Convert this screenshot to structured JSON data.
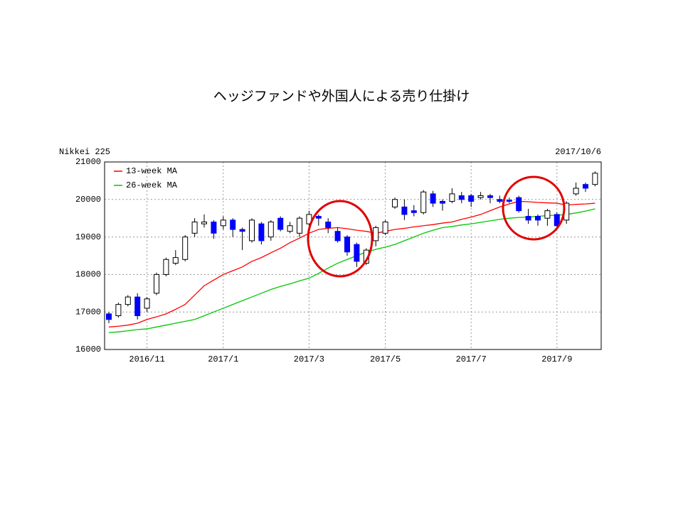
{
  "chart_data": {
    "type": "candlestick",
    "title": "ヘッジファンドや外国人による売り仕掛け",
    "corner_left": "Nikkei 225",
    "corner_right": "2017/10/6",
    "categories": [
      null,
      null,
      null,
      null,
      "2016/11",
      null,
      null,
      null,
      null,
      null,
      null,
      null,
      "2017/1",
      null,
      null,
      null,
      null,
      null,
      null,
      null,
      null,
      "2017/3",
      null,
      null,
      null,
      null,
      null,
      null,
      null,
      "2017/5",
      null,
      null,
      null,
      null,
      null,
      null,
      null,
      null,
      "2017/7",
      null,
      null,
      null,
      null,
      null,
      null,
      null,
      null,
      "2017/9",
      null,
      null,
      null,
      null
    ],
    "open": [
      16950,
      16900,
      17200,
      17400,
      17100,
      17500,
      18000,
      18300,
      18400,
      19100,
      19350,
      19400,
      19300,
      19450,
      19200,
      18900,
      19350,
      19000,
      19500,
      19150,
      19100,
      19350,
      19550,
      19400,
      19150,
      19000,
      18800,
      18300,
      18900,
      19100,
      19800,
      19800,
      19700,
      19650,
      20150,
      19950,
      19950,
      20100,
      20100,
      20050,
      20100,
      20000,
      19980,
      20050,
      19550,
      19550,
      19500,
      19600,
      19450,
      20150,
      20400,
      20400
    ],
    "high": [
      17000,
      17250,
      17450,
      17500,
      17400,
      18050,
      18450,
      18650,
      19050,
      19500,
      19600,
      19450,
      19550,
      19500,
      19250,
      19500,
      19400,
      19450,
      19550,
      19400,
      19550,
      19700,
      19600,
      19500,
      19250,
      19050,
      18850,
      18700,
      19300,
      19450,
      20050,
      20000,
      19850,
      20250,
      20230,
      20000,
      20300,
      20200,
      20150,
      20200,
      20150,
      20100,
      20050,
      20100,
      19750,
      19600,
      19750,
      19650,
      19950,
      20450,
      20450,
      20750
    ],
    "low": [
      16700,
      16850,
      17150,
      16800,
      17000,
      17450,
      17950,
      18250,
      18350,
      19000,
      19250,
      18950,
      19200,
      19000,
      18650,
      18850,
      18800,
      18900,
      19150,
      19100,
      19000,
      19300,
      19300,
      19100,
      18850,
      18500,
      18200,
      18250,
      18750,
      19050,
      19750,
      19450,
      19550,
      19600,
      19800,
      19700,
      19900,
      19900,
      19800,
      20000,
      19900,
      19900,
      19900,
      19650,
      19350,
      19300,
      19300,
      19200,
      19350,
      20100,
      20200,
      20350
    ],
    "close": [
      16800,
      17200,
      17400,
      16900,
      17350,
      18000,
      18400,
      18450,
      19000,
      19400,
      19400,
      19100,
      19450,
      19200,
      19150,
      19450,
      18900,
      19400,
      19200,
      19300,
      19500,
      19600,
      19500,
      19250,
      18900,
      18600,
      18350,
      18650,
      19250,
      19400,
      20000,
      19600,
      19650,
      20200,
      19900,
      19900,
      20150,
      20000,
      19950,
      20100,
      20050,
      19950,
      19950,
      19700,
      19450,
      19450,
      19700,
      19300,
      19900,
      20300,
      20300,
      20700
    ],
    "up_color": "#ffffff",
    "down_color": "#0000ff",
    "series": [
      {
        "name": "13-week MA",
        "color": "#ff0000",
        "values": [
          16600,
          16620,
          16650,
          16700,
          16800,
          16870,
          16950,
          17070,
          17200,
          17450,
          17700,
          17850,
          18000,
          18100,
          18200,
          18350,
          18450,
          18580,
          18700,
          18850,
          18970,
          19100,
          19200,
          19230,
          19250,
          19220,
          19180,
          19150,
          19100,
          19150,
          19200,
          19230,
          19270,
          19300,
          19330,
          19370,
          19400,
          19470,
          19530,
          19600,
          19700,
          19800,
          19880,
          19950,
          19940,
          19920,
          19910,
          19900,
          19850,
          19870,
          19880,
          19900
        ]
      },
      {
        "name": "26-week MA",
        "color": "#00c800",
        "values": [
          16450,
          16470,
          16500,
          16530,
          16550,
          16600,
          16650,
          16700,
          16750,
          16800,
          16900,
          17000,
          17100,
          17200,
          17300,
          17400,
          17500,
          17600,
          17680,
          17750,
          17830,
          17900,
          18030,
          18170,
          18300,
          18400,
          18500,
          18600,
          18670,
          18730,
          18800,
          18900,
          19000,
          19100,
          19180,
          19250,
          19280,
          19320,
          19350,
          19390,
          19430,
          19470,
          19500,
          19520,
          19530,
          19550,
          19570,
          19580,
          19600,
          19640,
          19690,
          19750
        ]
      }
    ],
    "ylim": [
      16000,
      21000
    ],
    "yticks": [
      16000,
      17000,
      18000,
      19000,
      20000,
      21000
    ],
    "grid": true
  }
}
